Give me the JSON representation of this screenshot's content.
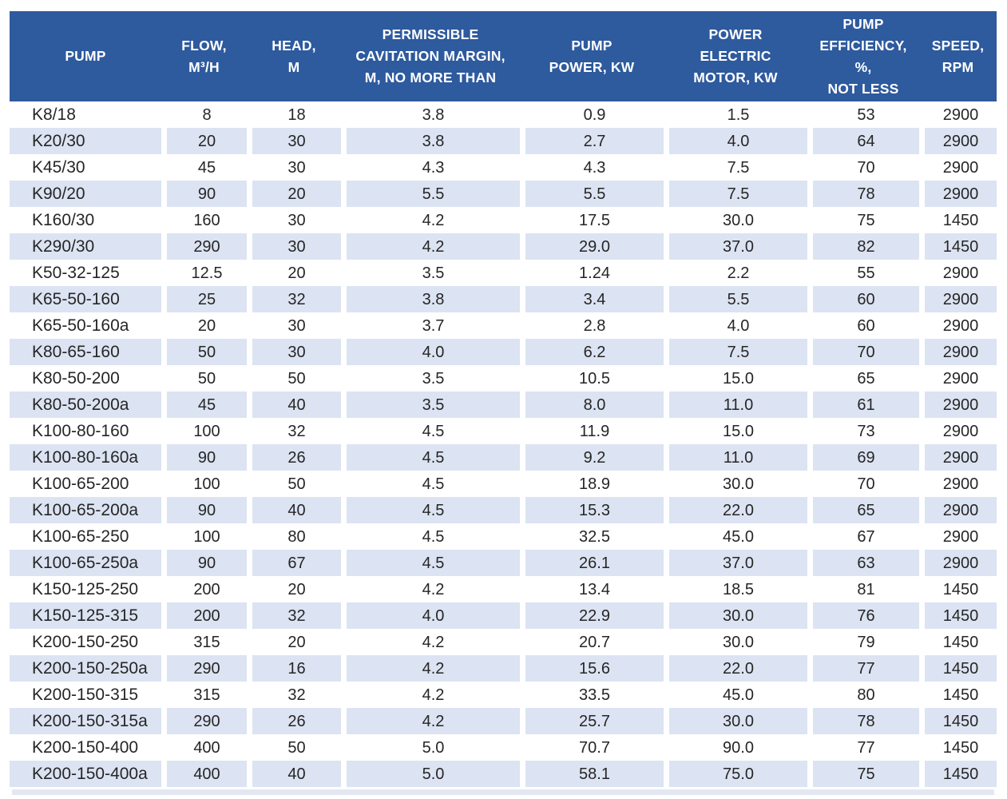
{
  "title": "Pump specifications table",
  "colors": {
    "header_bg": "#2e5a9e",
    "header_text": "#ffffff",
    "row_alt_bg": "#dce3f2",
    "row_bg": "#ffffff",
    "body_text": "#262626",
    "bottom_strip": "#e2e7f2"
  },
  "chart_data": {
    "type": "table",
    "title": "Pump specifications",
    "legend_position": "none",
    "grid": "white gaps between columns, alternating row shading",
    "columns": [
      {
        "id": "pump",
        "label": "PUMP",
        "align": "left"
      },
      {
        "id": "flow",
        "label": "FLOW,\nM³/H",
        "align": "center"
      },
      {
        "id": "head",
        "label": "HEAD,\nM",
        "align": "center"
      },
      {
        "id": "cavitation",
        "label": "PERMISSIBLE\nCAVITATION MARGIN,\nM, NO MORE THAN",
        "align": "center"
      },
      {
        "id": "pump-power",
        "label": "PUMP\nPOWER, KW",
        "align": "center"
      },
      {
        "id": "motor-power",
        "label": "POWER\nELECTRIC\nMOTOR, KW",
        "align": "center"
      },
      {
        "id": "efficiency",
        "label": "PUMP\nEFFICIENCY, %,\nNOT LESS",
        "align": "center"
      },
      {
        "id": "speed",
        "label": "SPEED,\nRPM",
        "align": "center"
      }
    ],
    "rows": [
      [
        "K8/18",
        "8",
        "18",
        "3.8",
        "0.9",
        "1.5",
        "53",
        "2900"
      ],
      [
        "K20/30",
        "20",
        "30",
        "3.8",
        "2.7",
        "4.0",
        "64",
        "2900"
      ],
      [
        "K45/30",
        "45",
        "30",
        "4.3",
        "4.3",
        "7.5",
        "70",
        "2900"
      ],
      [
        "K90/20",
        "90",
        "20",
        "5.5",
        "5.5",
        "7.5",
        "78",
        "2900"
      ],
      [
        "K160/30",
        "160",
        "30",
        "4.2",
        "17.5",
        "30.0",
        "75",
        "1450"
      ],
      [
        "K290/30",
        "290",
        "30",
        "4.2",
        "29.0",
        "37.0",
        "82",
        "1450"
      ],
      [
        "K50-32-125",
        "12.5",
        "20",
        "3.5",
        "1.24",
        "2.2",
        "55",
        "2900"
      ],
      [
        "K65-50-160",
        "25",
        "32",
        "3.8",
        "3.4",
        "5.5",
        "60",
        "2900"
      ],
      [
        "K65-50-160a",
        "20",
        "30",
        "3.7",
        "2.8",
        "4.0",
        "60",
        "2900"
      ],
      [
        "K80-65-160",
        "50",
        "30",
        "4.0",
        "6.2",
        "7.5",
        "70",
        "2900"
      ],
      [
        "K80-50-200",
        "50",
        "50",
        "3.5",
        "10.5",
        "15.0",
        "65",
        "2900"
      ],
      [
        "K80-50-200a",
        "45",
        "40",
        "3.5",
        "8.0",
        "11.0",
        "61",
        "2900"
      ],
      [
        "K100-80-160",
        "100",
        "32",
        "4.5",
        "11.9",
        "15.0",
        "73",
        "2900"
      ],
      [
        "K100-80-160a",
        "90",
        "26",
        "4.5",
        "9.2",
        "11.0",
        "69",
        "2900"
      ],
      [
        "K100-65-200",
        "100",
        "50",
        "4.5",
        "18.9",
        "30.0",
        "70",
        "2900"
      ],
      [
        "K100-65-200a",
        "90",
        "40",
        "4.5",
        "15.3",
        "22.0",
        "65",
        "2900"
      ],
      [
        "K100-65-250",
        "100",
        "80",
        "4.5",
        "32.5",
        "45.0",
        "67",
        "2900"
      ],
      [
        "K100-65-250a",
        "90",
        "67",
        "4.5",
        "26.1",
        "37.0",
        "63",
        "2900"
      ],
      [
        "K150-125-250",
        "200",
        "20",
        "4.2",
        "13.4",
        "18.5",
        "81",
        "1450"
      ],
      [
        "K150-125-315",
        "200",
        "32",
        "4.0",
        "22.9",
        "30.0",
        "76",
        "1450"
      ],
      [
        "K200-150-250",
        "315",
        "20",
        "4.2",
        "20.7",
        "30.0",
        "79",
        "1450"
      ],
      [
        "K200-150-250a",
        "290",
        "16",
        "4.2",
        "15.6",
        "22.0",
        "77",
        "1450"
      ],
      [
        "K200-150-315",
        "315",
        "32",
        "4.2",
        "33.5",
        "45.0",
        "80",
        "1450"
      ],
      [
        "K200-150-315a",
        "290",
        "26",
        "4.2",
        "25.7",
        "30.0",
        "78",
        "1450"
      ],
      [
        "K200-150-400",
        "400",
        "50",
        "5.0",
        "70.7",
        "90.0",
        "77",
        "1450"
      ],
      [
        "K200-150-400a",
        "400",
        "40",
        "5.0",
        "58.1",
        "75.0",
        "75",
        "1450"
      ]
    ]
  }
}
